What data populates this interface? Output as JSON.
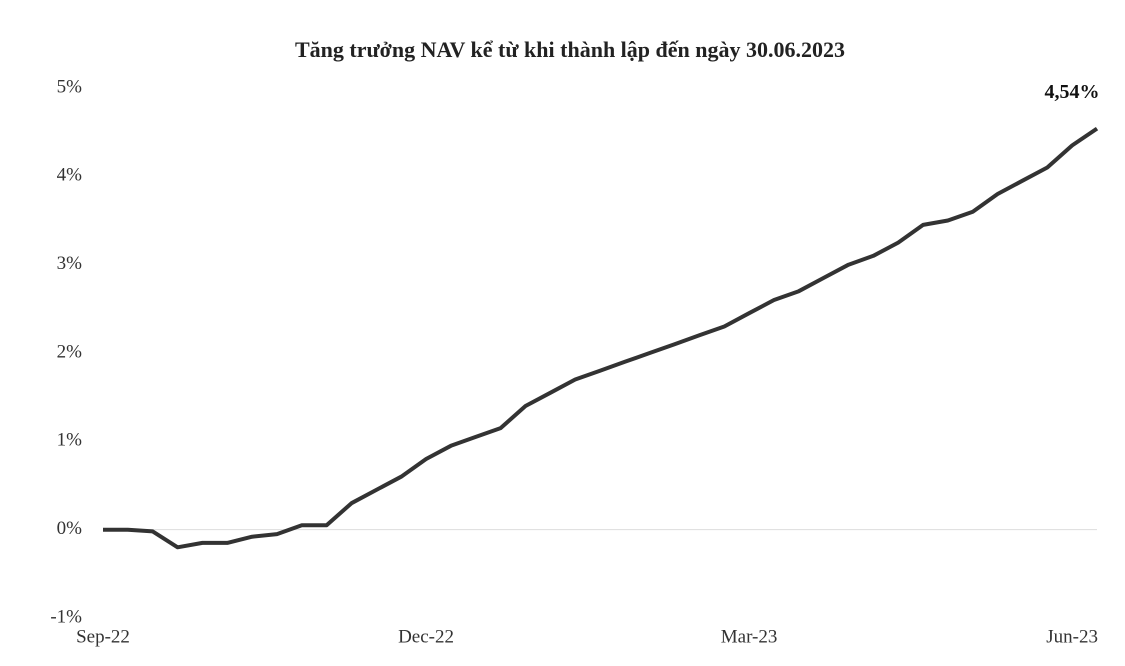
{
  "chart_data": {
    "type": "line",
    "title": "Tăng trưởng NAV kể từ khi thành lập đến ngày 30.06.2023",
    "categories": [
      "Sep-22",
      null,
      null,
      null,
      null,
      null,
      null,
      null,
      null,
      null,
      null,
      null,
      null,
      "Dec-22",
      null,
      null,
      null,
      null,
      null,
      null,
      null,
      null,
      null,
      null,
      null,
      null,
      "Mar-23",
      null,
      null,
      null,
      null,
      null,
      null,
      null,
      null,
      null,
      null,
      null,
      null,
      "Jun-23",
      null
    ],
    "series": [
      {
        "name": "NAV",
        "color": "#333333",
        "values": [
          0.0,
          0.0,
          -0.02,
          -0.2,
          -0.15,
          -0.15,
          -0.08,
          -0.05,
          0.05,
          0.05,
          0.3,
          0.45,
          0.6,
          0.8,
          0.95,
          1.05,
          1.15,
          1.4,
          1.55,
          1.7,
          1.8,
          1.9,
          2.0,
          2.1,
          2.2,
          2.3,
          2.45,
          2.6,
          2.7,
          2.85,
          3.0,
          3.1,
          3.25,
          3.45,
          3.5,
          3.6,
          3.8,
          3.95,
          4.1,
          4.35,
          4.54
        ],
        "value_labels": [
          null,
          null,
          null,
          null,
          null,
          null,
          null,
          null,
          null,
          null,
          null,
          null,
          null,
          null,
          null,
          null,
          null,
          null,
          null,
          null,
          null,
          null,
          null,
          null,
          null,
          null,
          null,
          null,
          null,
          null,
          null,
          null,
          null,
          null,
          null,
          null,
          null,
          null,
          null,
          null,
          "4,54%"
        ]
      }
    ],
    "ylim": [
      -1,
      5
    ],
    "yticks": [
      {
        "value": -1,
        "label": "-1%"
      },
      {
        "value": 0,
        "label": "0%"
      },
      {
        "value": 1,
        "label": "1%"
      },
      {
        "value": 2,
        "label": "2%"
      },
      {
        "value": 3,
        "label": "3%"
      },
      {
        "value": 4,
        "label": "4%"
      },
      {
        "value": 5,
        "label": "5%"
      }
    ]
  }
}
